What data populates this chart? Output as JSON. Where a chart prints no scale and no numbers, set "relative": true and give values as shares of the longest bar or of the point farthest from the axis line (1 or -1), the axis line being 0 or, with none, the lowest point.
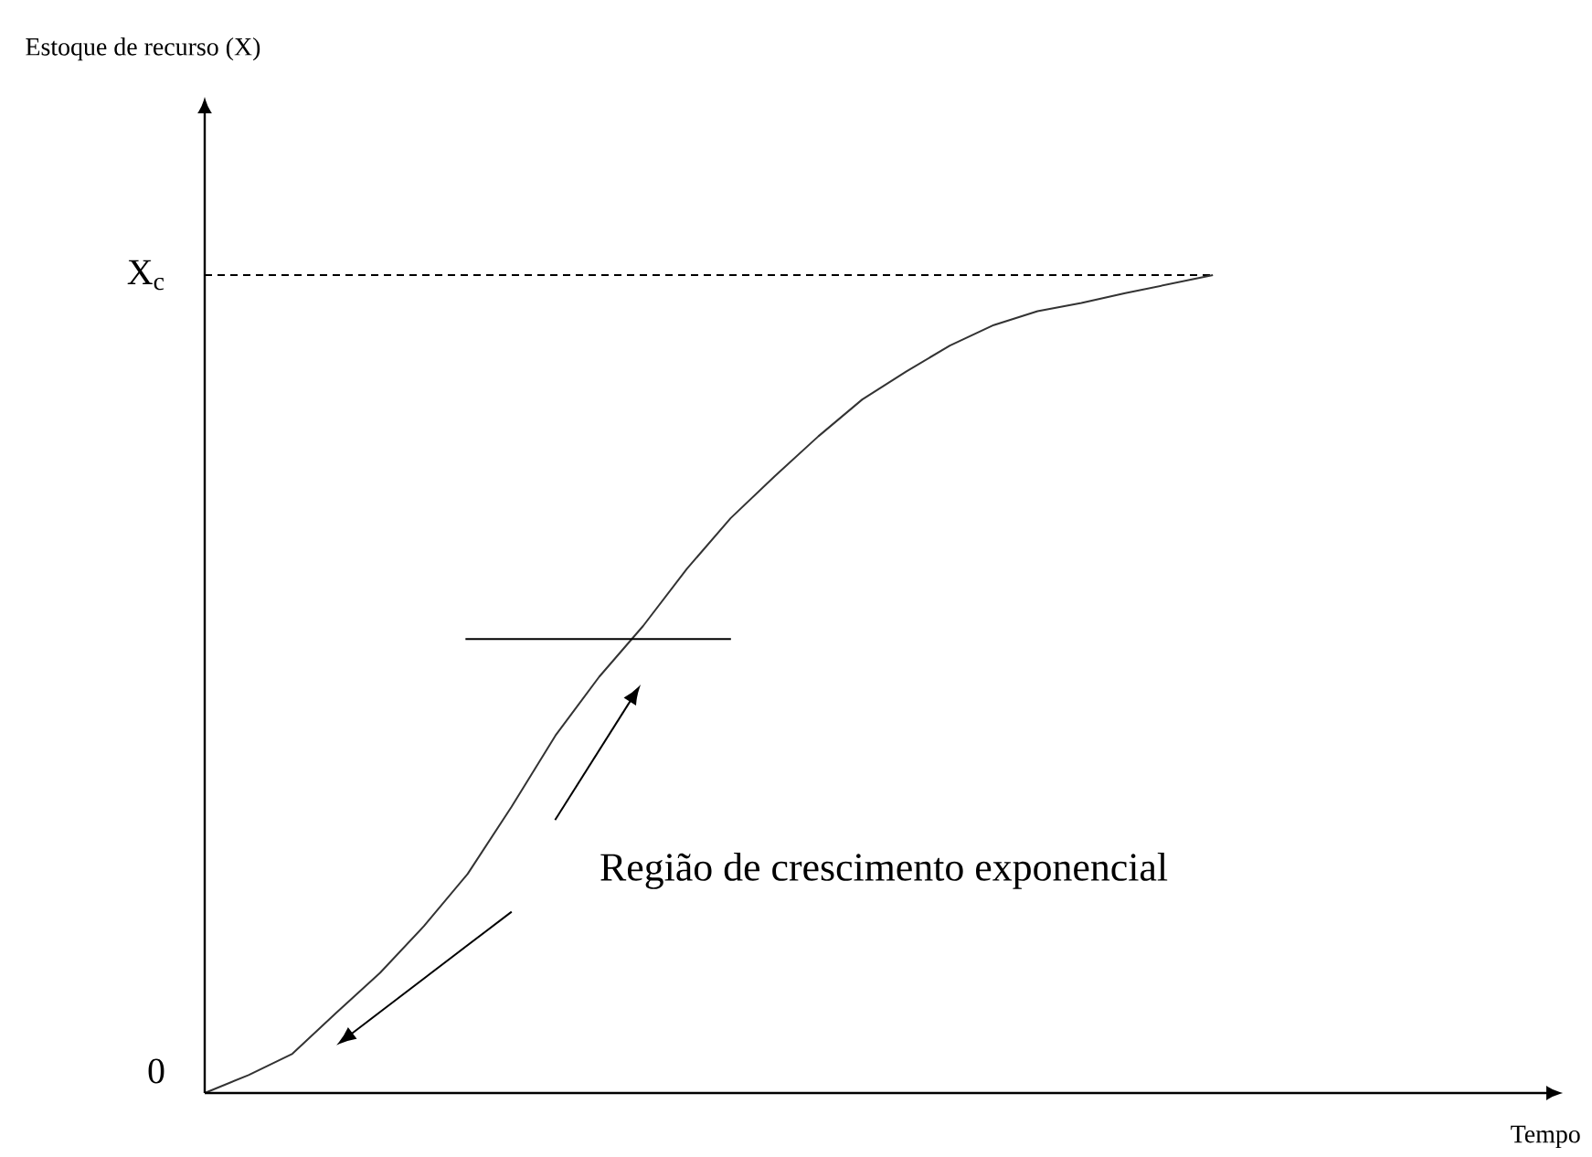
{
  "chart_data": {
    "type": "line",
    "annotations": [
      "0",
      "Região de crescimento exponencial",
      "Estoque de recurso (X)",
      "Tempo"
    ],
    "relative": true,
    "categories": [
      null,
      null,
      null,
      null,
      null,
      null,
      null,
      null,
      null,
      null,
      null,
      null,
      null,
      null,
      null,
      null,
      null,
      null,
      null,
      null,
      null,
      null,
      null,
      null
    ],
    "ref_lines": [
      {
        "axis": "y",
        "value": 1,
        "label": "X$_{c}$",
        "color": "#000000",
        "line_style": "dashed"
      }
    ],
    "series": [
      {
        "color": "#333333",
        "values": [
          0,
          0.022,
          0.048,
          0.098,
          0.147,
          0.204,
          0.268,
          0.35,
          0.437,
          0.509,
          0.571,
          0.641,
          0.703,
          0.754,
          0.803,
          0.848,
          0.882,
          0.914,
          0.939,
          0.956,
          0.966,
          0.978,
          0.989,
          1
        ]
      }
    ]
  }
}
